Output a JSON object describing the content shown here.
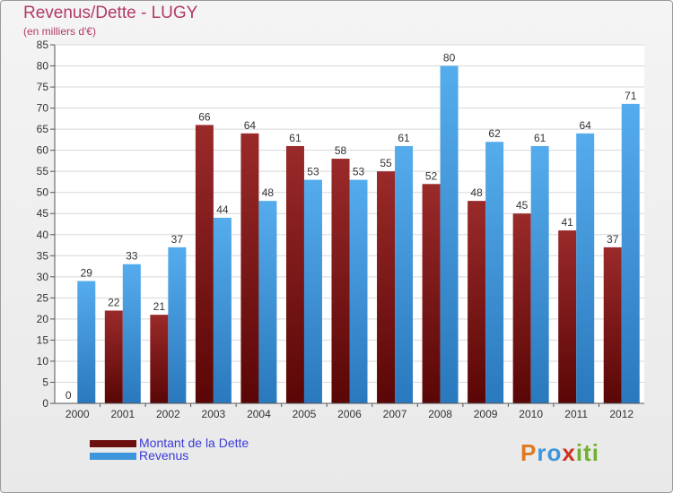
{
  "chart_data": {
    "type": "bar",
    "title": "Revenus/Dette - LUGY",
    "subtitle": "(en milliers d'€)",
    "categories": [
      "2000",
      "2001",
      "2002",
      "2003",
      "2004",
      "2005",
      "2006",
      "2007",
      "2008",
      "2009",
      "2010",
      "2011",
      "2012"
    ],
    "series": [
      {
        "name": "Montant de la Dette",
        "color": "#7a1a1a",
        "values": [
          0,
          22,
          21,
          66,
          64,
          61,
          58,
          55,
          52,
          48,
          45,
          41,
          37
        ]
      },
      {
        "name": "Revenus",
        "color": "#3d96dc",
        "values": [
          29,
          33,
          37,
          44,
          48,
          53,
          53,
          61,
          80,
          62,
          61,
          64,
          71
        ]
      }
    ],
    "ylim": [
      0,
      85
    ],
    "ytick_step": 5,
    "grid": true,
    "legend_placement": "bottom-left"
  },
  "logo": {
    "text": "Proxiti"
  }
}
